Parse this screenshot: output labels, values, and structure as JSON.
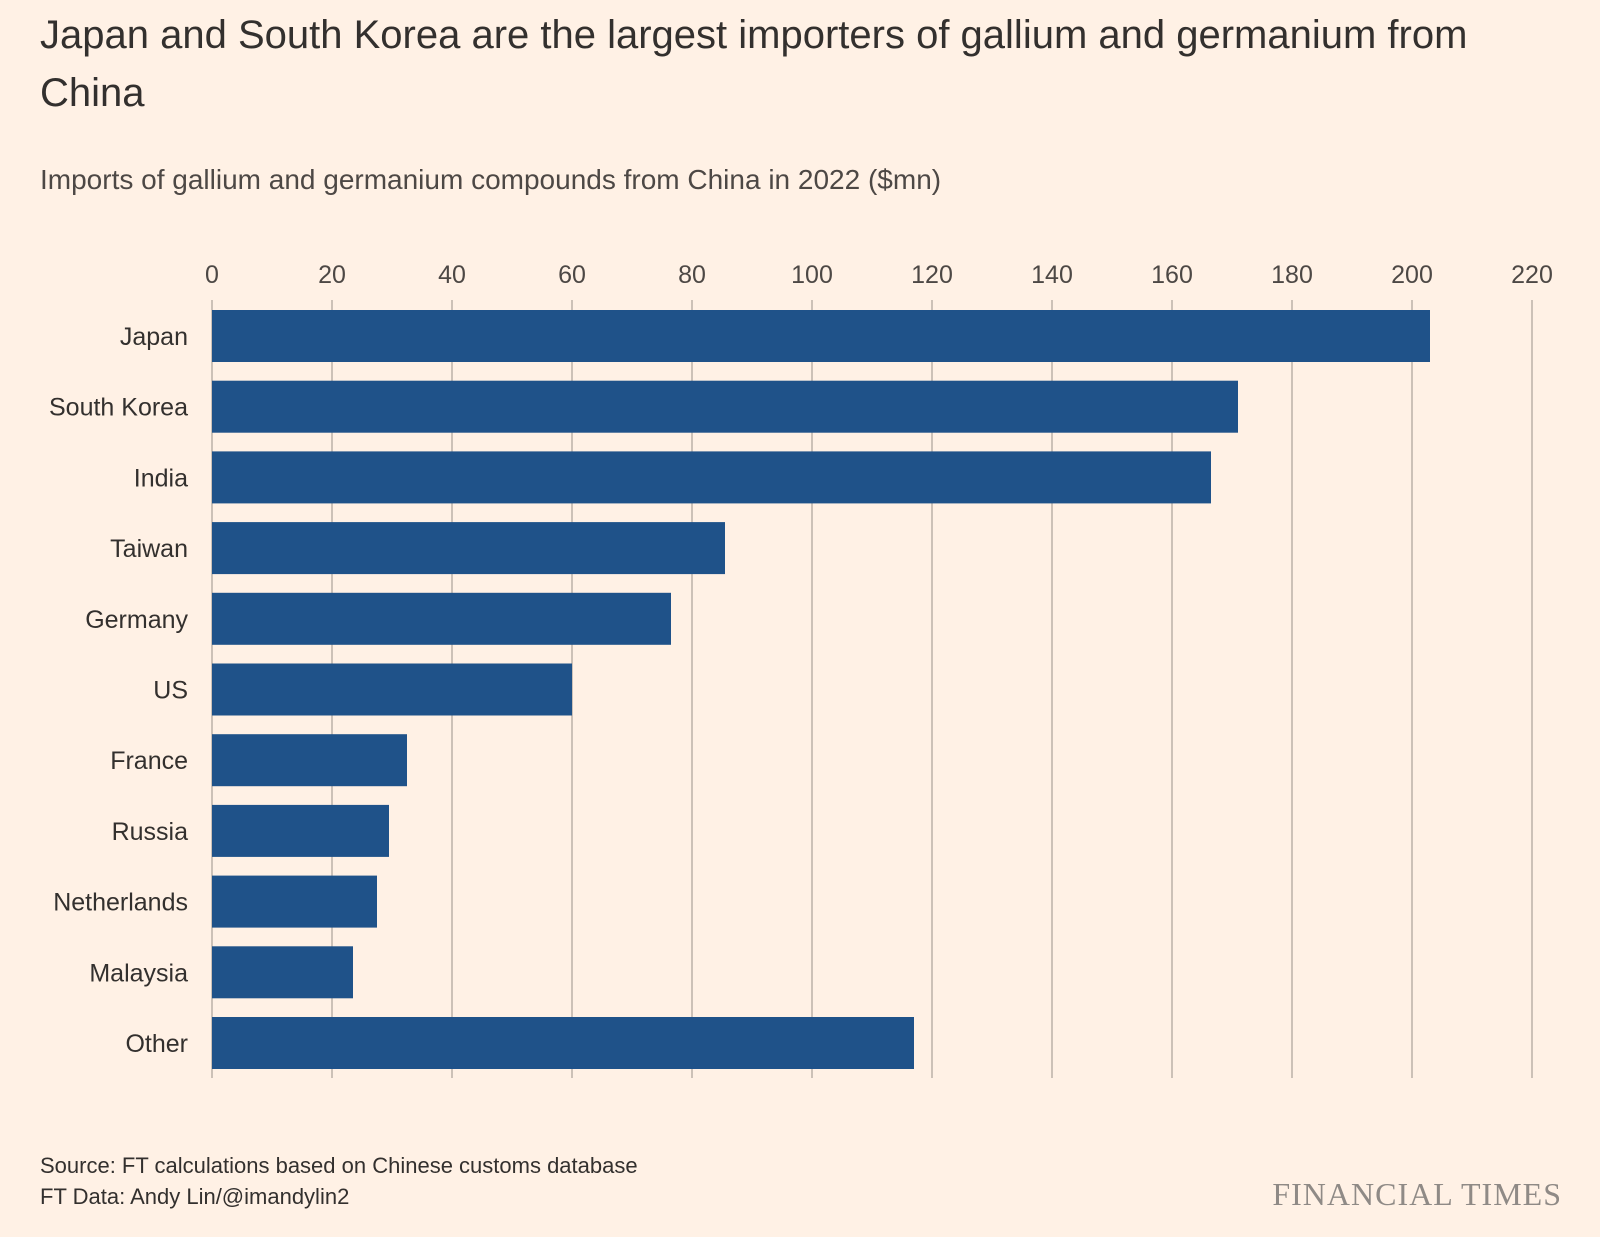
{
  "chart_data": {
    "type": "bar",
    "orientation": "horizontal",
    "title": "Japan and South Korea are the largest importers of gallium and germanium from China",
    "subtitle": "Imports of gallium and germanium compounds from China in 2022 ($mn)",
    "categories": [
      "Japan",
      "South Korea",
      "India",
      "Taiwan",
      "Germany",
      "US",
      "France",
      "Russia",
      "Netherlands",
      "Malaysia",
      "Other"
    ],
    "values": [
      203,
      171,
      166.5,
      85.5,
      76.5,
      60,
      32.5,
      29.5,
      27.5,
      23.5,
      117
    ],
    "xlim": [
      0,
      220
    ],
    "x_ticks": [
      0,
      20,
      40,
      60,
      80,
      100,
      120,
      140,
      160,
      180,
      200,
      220
    ],
    "x_tick_labels": [
      "0",
      "20",
      "40",
      "60",
      "80",
      "100",
      "120",
      "140",
      "160",
      "180",
      "200",
      "220"
    ],
    "xlabel": "",
    "ylabel": "",
    "x_axis_position": "top",
    "grid": true,
    "legend": "none",
    "bar_color": "#1f5289"
  },
  "footer": {
    "source": "Source: FT calculations based on Chinese customs database",
    "credit": "FT Data: Andy Lin/@imandylin2"
  },
  "logo": "FINANCIAL TIMES",
  "colors": {
    "background": "#fff1e5",
    "bar": "#1f5289",
    "grid": "#ccc1b7",
    "text": "#33302e"
  }
}
